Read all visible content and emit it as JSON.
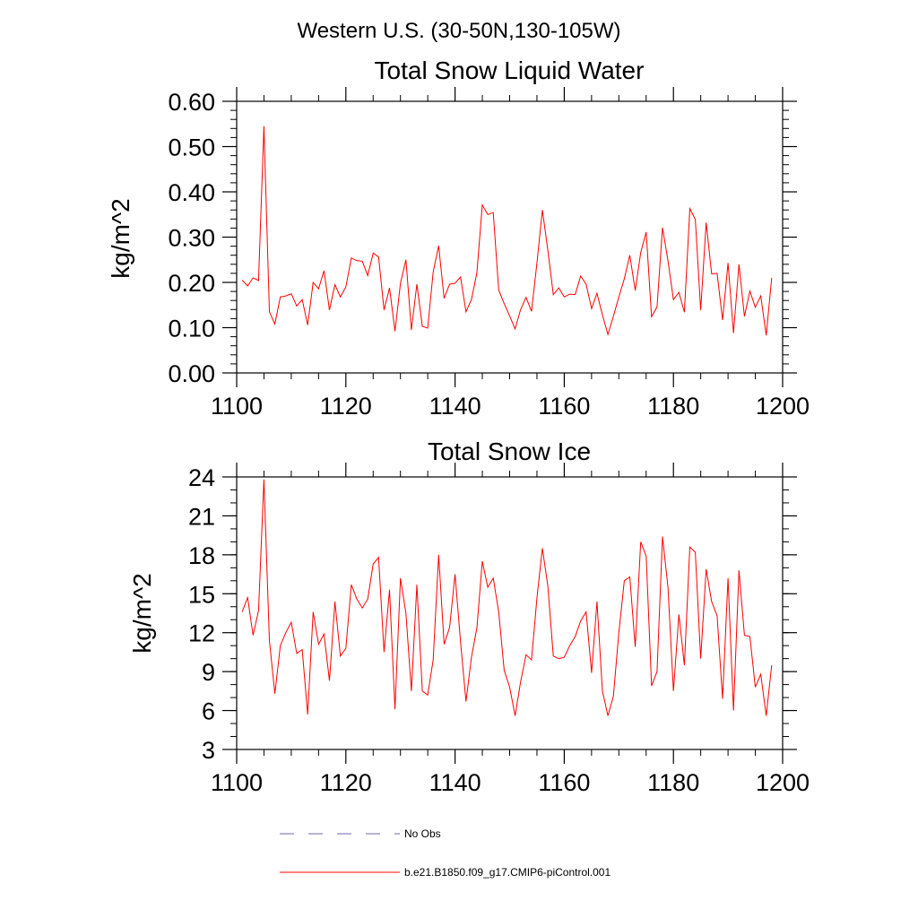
{
  "figure_title": "Western U.S. (30-50N,130-105W)",
  "legend": [
    {
      "label": "No Obs",
      "color": "#6a6aa8",
      "style": "dashed"
    },
    {
      "label": "b.e21.B1850.f09_g17.CMIP6-piControl.001",
      "color": "#ff0000",
      "style": "solid"
    }
  ],
  "chart_data": [
    {
      "type": "line",
      "title": "Total Snow Liquid Water",
      "xlabel": "",
      "ylabel": "kg/m^2",
      "xlim": [
        1100,
        1200
      ],
      "ylim": [
        0,
        0.6
      ],
      "xticks": [
        1100,
        1120,
        1140,
        1160,
        1180,
        1200
      ],
      "xtick_labels": [
        "1100",
        "1120",
        "1140",
        "1160",
        "1180",
        "1200"
      ],
      "yticks": [
        0,
        0.1,
        0.2,
        0.3,
        0.4,
        0.5,
        0.6
      ],
      "ytick_labels": [
        "0.00",
        "0.10",
        "0.20",
        "0.30",
        "0.40",
        "0.50",
        "0.60"
      ],
      "grid": false,
      "series": [
        {
          "name": "b.e21.B1850.f09_g17.CMIP6-piControl.001",
          "color": "#ff0000",
          "x": [
            1101,
            1102,
            1103,
            1104,
            1105,
            1106,
            1107,
            1108,
            1109,
            1110,
            1111,
            1112,
            1113,
            1114,
            1115,
            1116,
            1117,
            1118,
            1119,
            1120,
            1121,
            1122,
            1123,
            1124,
            1125,
            1126,
            1127,
            1128,
            1129,
            1130,
            1131,
            1132,
            1133,
            1134,
            1135,
            1136,
            1137,
            1138,
            1139,
            1140,
            1141,
            1142,
            1143,
            1144,
            1145,
            1146,
            1147,
            1148,
            1149,
            1150,
            1151,
            1152,
            1153,
            1154,
            1155,
            1156,
            1157,
            1158,
            1159,
            1160,
            1161,
            1162,
            1163,
            1164,
            1165,
            1166,
            1167,
            1168,
            1169,
            1170,
            1171,
            1172,
            1173,
            1174,
            1175,
            1176,
            1177,
            1178,
            1179,
            1180,
            1181,
            1182,
            1183,
            1184,
            1185,
            1186,
            1187,
            1188,
            1189,
            1190,
            1191,
            1192,
            1193,
            1194,
            1195,
            1196,
            1197,
            1198
          ],
          "values": [
            0.205,
            0.192,
            0.21,
            0.204,
            0.545,
            0.135,
            0.108,
            0.168,
            0.17,
            0.175,
            0.148,
            0.162,
            0.106,
            0.2,
            0.186,
            0.226,
            0.139,
            0.195,
            0.168,
            0.19,
            0.254,
            0.248,
            0.247,
            0.215,
            0.265,
            0.256,
            0.139,
            0.188,
            0.092,
            0.198,
            0.25,
            0.095,
            0.196,
            0.103,
            0.099,
            0.223,
            0.281,
            0.165,
            0.196,
            0.198,
            0.212,
            0.135,
            0.162,
            0.222,
            0.371,
            0.35,
            0.354,
            0.183,
            0.153,
            0.126,
            0.097,
            0.14,
            0.167,
            0.136,
            0.244,
            0.36,
            0.271,
            0.173,
            0.188,
            0.168,
            0.174,
            0.173,
            0.214,
            0.196,
            0.142,
            0.176,
            0.128,
            0.085,
            0.125,
            0.168,
            0.208,
            0.26,
            0.182,
            0.266,
            0.311,
            0.124,
            0.146,
            0.321,
            0.248,
            0.162,
            0.178,
            0.134,
            0.363,
            0.339,
            0.139,
            0.332,
            0.219,
            0.22,
            0.117,
            0.243,
            0.088,
            0.24,
            0.125,
            0.181,
            0.145,
            0.17,
            0.083,
            0.21
          ]
        }
      ]
    },
    {
      "type": "line",
      "title": "Total Snow Ice",
      "xlabel": "",
      "ylabel": "kg/m^2",
      "xlim": [
        1100,
        1200
      ],
      "ylim": [
        3,
        24
      ],
      "xticks": [
        1100,
        1120,
        1140,
        1160,
        1180,
        1200
      ],
      "xtick_labels": [
        "1100",
        "1120",
        "1140",
        "1160",
        "1180",
        "1200"
      ],
      "yticks": [
        3,
        6,
        9,
        12,
        15,
        18,
        21,
        24
      ],
      "ytick_labels": [
        "3",
        "6",
        "9",
        "12",
        "15",
        "18",
        "21",
        "24"
      ],
      "grid": false,
      "series": [
        {
          "name": "b.e21.B1850.f09_g17.CMIP6-piControl.001",
          "color": "#ff0000",
          "x": [
            1101,
            1102,
            1103,
            1104,
            1105,
            1106,
            1107,
            1108,
            1109,
            1110,
            1111,
            1112,
            1113,
            1114,
            1115,
            1116,
            1117,
            1118,
            1119,
            1120,
            1121,
            1122,
            1123,
            1124,
            1125,
            1126,
            1127,
            1128,
            1129,
            1130,
            1131,
            1132,
            1133,
            1134,
            1135,
            1136,
            1137,
            1138,
            1139,
            1140,
            1141,
            1142,
            1143,
            1144,
            1145,
            1146,
            1147,
            1148,
            1149,
            1150,
            1151,
            1152,
            1153,
            1154,
            1155,
            1156,
            1157,
            1158,
            1159,
            1160,
            1161,
            1162,
            1163,
            1164,
            1165,
            1166,
            1167,
            1168,
            1169,
            1170,
            1171,
            1172,
            1173,
            1174,
            1175,
            1176,
            1177,
            1178,
            1179,
            1180,
            1181,
            1182,
            1183,
            1184,
            1185,
            1186,
            1187,
            1188,
            1189,
            1190,
            1191,
            1192,
            1193,
            1194,
            1195,
            1196,
            1197,
            1198
          ],
          "values": [
            13.6,
            14.7,
            11.8,
            13.7,
            23.8,
            11.4,
            7.3,
            11.0,
            12.0,
            12.8,
            10.4,
            10.7,
            5.7,
            13.6,
            11.1,
            11.9,
            8.3,
            14.4,
            10.2,
            10.8,
            15.7,
            14.6,
            13.9,
            14.6,
            17.3,
            17.8,
            10.5,
            15.3,
            6.1,
            16.2,
            13.5,
            7.5,
            15.7,
            7.5,
            7.2,
            9.9,
            18.0,
            11.1,
            12.4,
            16.5,
            11.3,
            6.7,
            10.1,
            12.4,
            17.5,
            15.5,
            16.2,
            13.6,
            9.1,
            7.8,
            5.6,
            8.2,
            10.3,
            9.9,
            14.7,
            18.5,
            15.6,
            10.2,
            10.0,
            10.1,
            11.0,
            11.7,
            12.9,
            13.6,
            8.9,
            14.4,
            7.5,
            5.6,
            7.1,
            12.0,
            16.0,
            16.3,
            10.9,
            19.0,
            17.9,
            7.9,
            9.0,
            19.4,
            15.5,
            7.5,
            13.4,
            9.5,
            18.6,
            18.2,
            10.0,
            16.9,
            14.4,
            13.3,
            6.9,
            16.2,
            6.0,
            16.8,
            11.8,
            11.7,
            7.8,
            8.8,
            5.6,
            9.5
          ]
        }
      ]
    }
  ]
}
